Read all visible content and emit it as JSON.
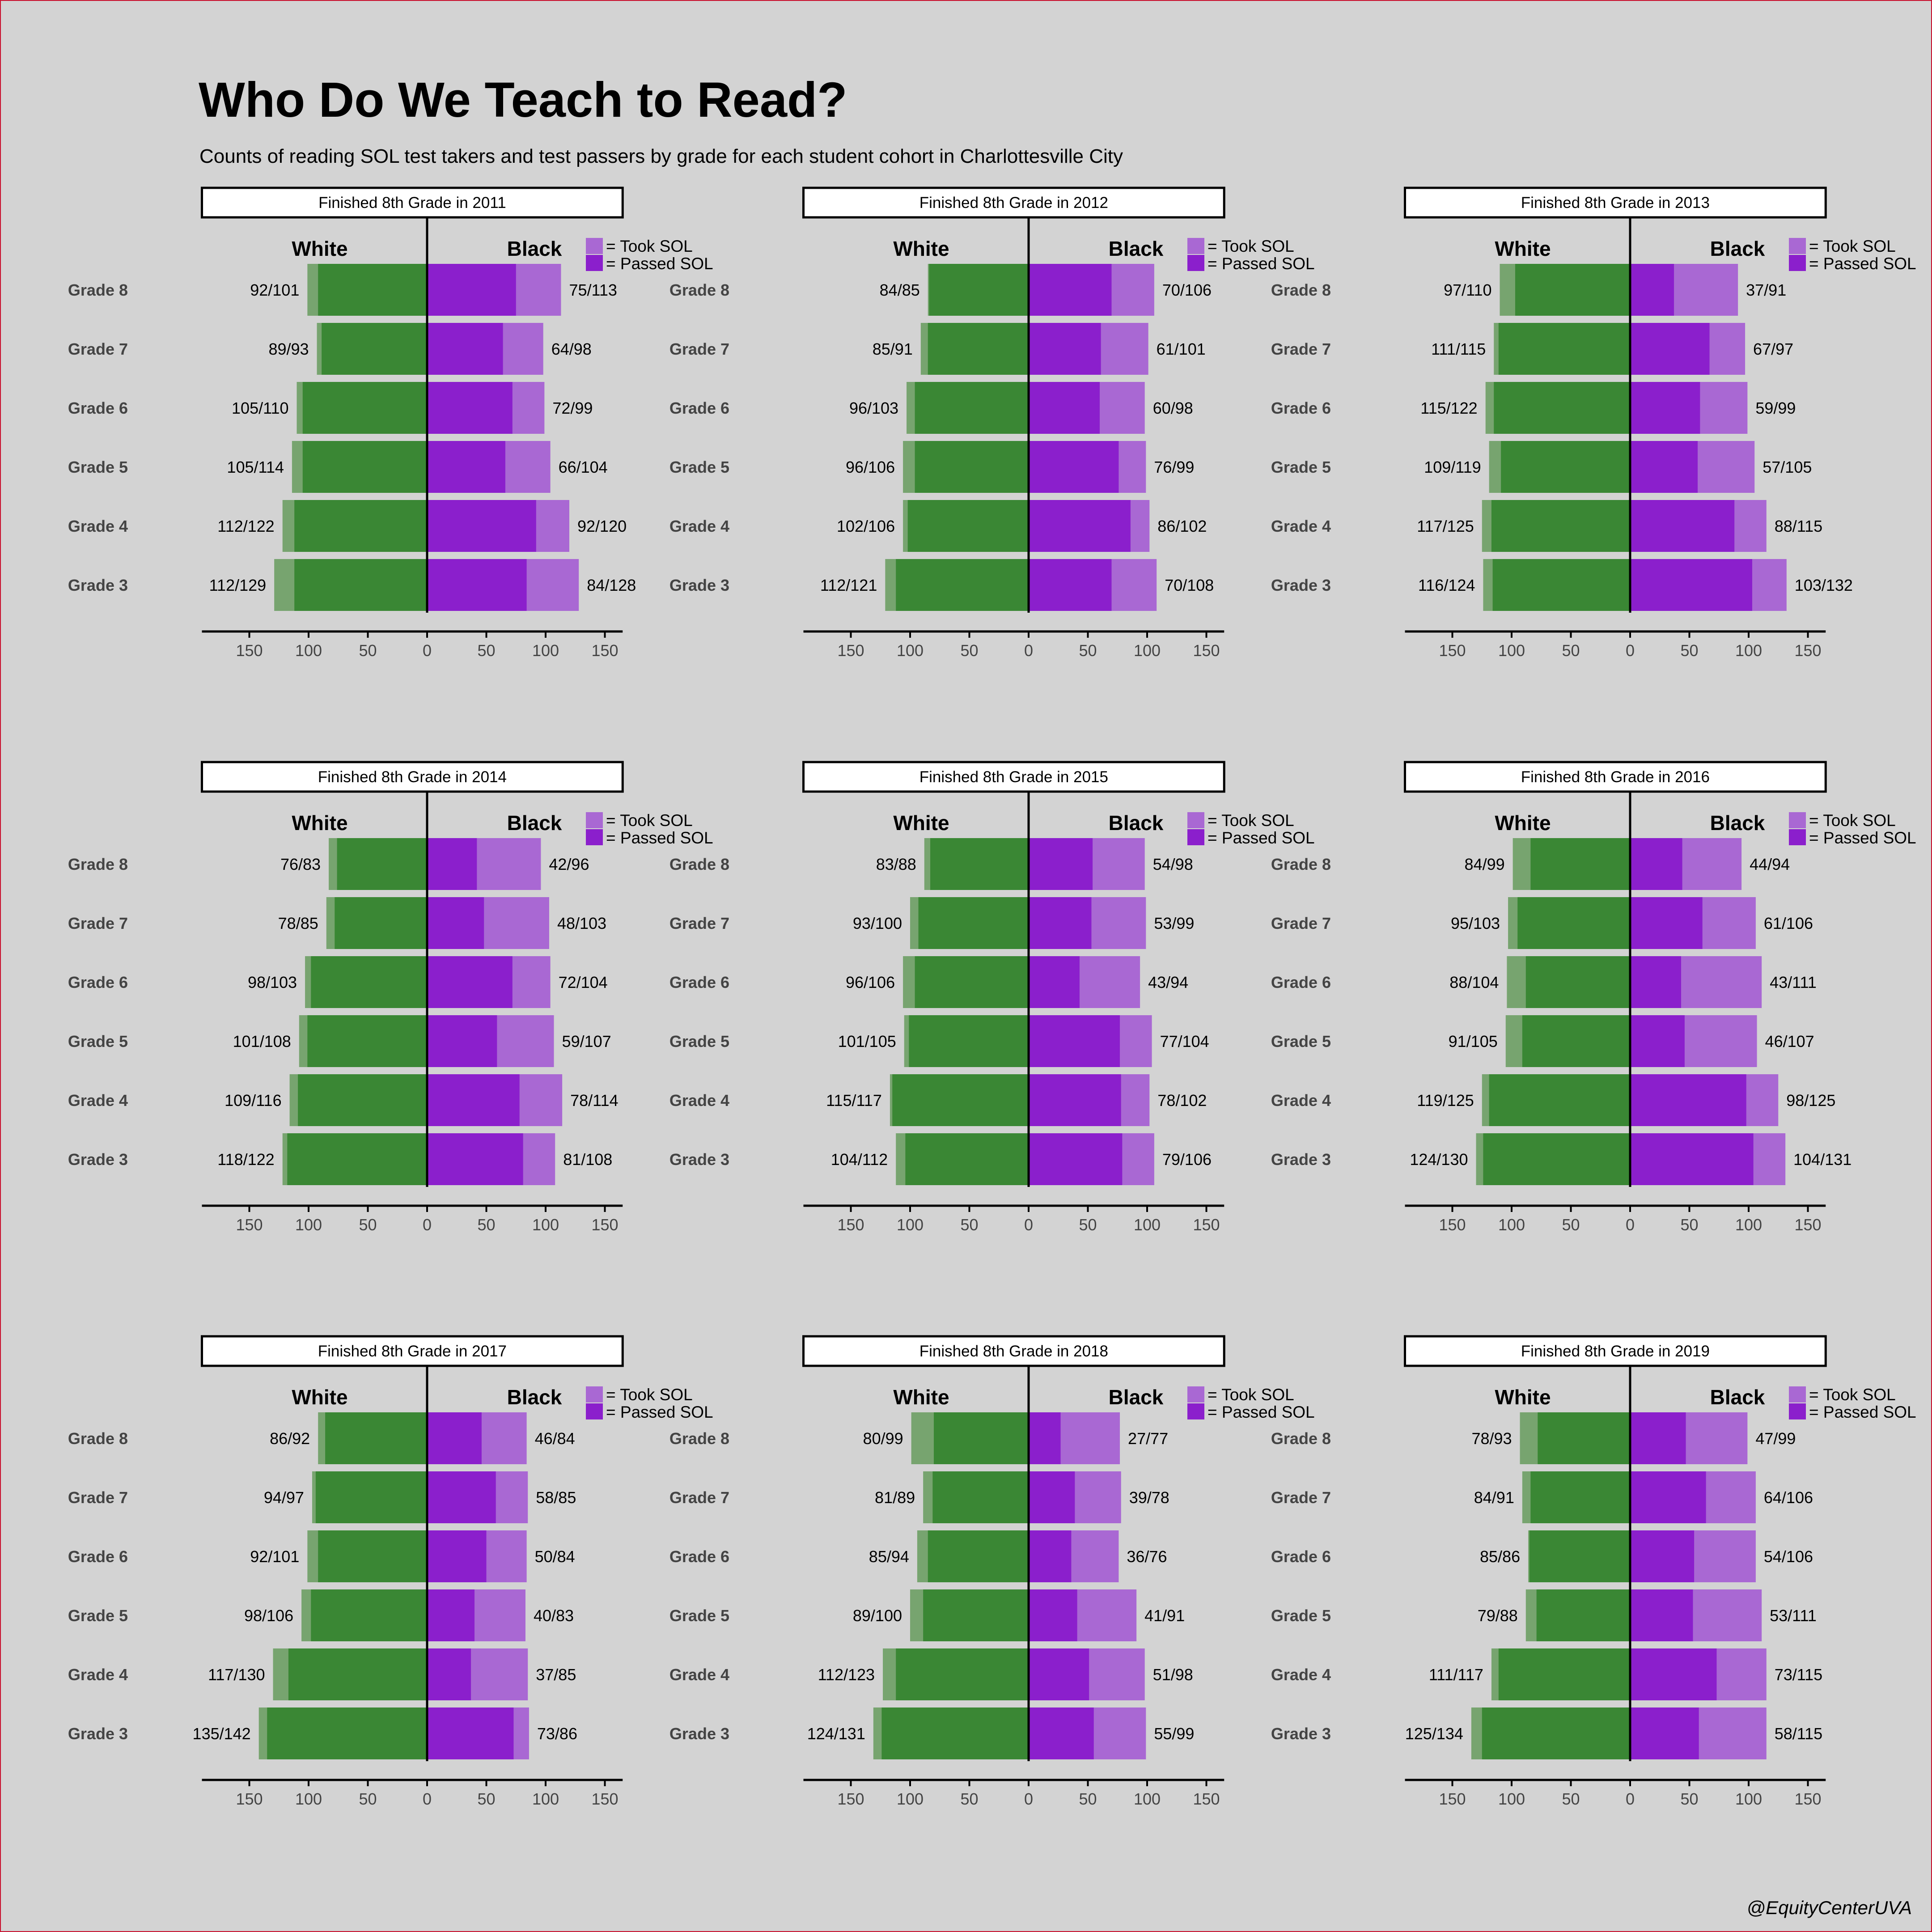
{
  "title": "Who Do We Teach to Read?",
  "subtitle": "Counts of reading SOL test takers and test passers by grade for each student cohort in Charlottesville City",
  "caption": "@EquityCenterUVA",
  "colors": {
    "background": "#d3d3d3",
    "white_took": "#77a46f",
    "white_passed": "#3a8734",
    "black_took": "#a968d3",
    "black_passed": "#8b1fcc"
  },
  "chart_data": [
    {
      "type": "bar",
      "title": "Finished 8th Grade in 2011",
      "group_labels": [
        "White",
        "Black"
      ],
      "legend": [
        "= Took SOL",
        "= Passed SOL"
      ],
      "legend_position": "top-right",
      "xlim": [
        -190,
        165
      ],
      "xticks": [
        -150,
        -100,
        -50,
        0,
        50,
        100,
        150
      ],
      "xtick_labels": [
        "150",
        "100",
        "50",
        "0",
        "50",
        "100",
        "150"
      ],
      "grid": false,
      "categories": [
        "Grade 8",
        "Grade 7",
        "Grade 6",
        "Grade 5",
        "Grade 4",
        "Grade 3"
      ],
      "series": [
        {
          "name": "White",
          "passed": [
            92,
            89,
            105,
            105,
            112,
            112
          ],
          "took": [
            101,
            93,
            110,
            114,
            122,
            129
          ],
          "labels": [
            "92/101",
            "89/93",
            "105/110",
            "105/114",
            "112/122",
            "112/129"
          ]
        },
        {
          "name": "Black",
          "passed": [
            75,
            64,
            72,
            66,
            92,
            84
          ],
          "took": [
            113,
            98,
            99,
            104,
            120,
            128
          ],
          "labels": [
            "75/113",
            "64/98",
            "72/99",
            "66/104",
            "92/120",
            "84/128"
          ]
        }
      ]
    },
    {
      "type": "bar",
      "title": "Finished 8th Grade in 2012",
      "group_labels": [
        "White",
        "Black"
      ],
      "legend": [
        "= Took SOL",
        "= Passed SOL"
      ],
      "legend_position": "top-right",
      "xlim": [
        -190,
        165
      ],
      "xticks": [
        -150,
        -100,
        -50,
        0,
        50,
        100,
        150
      ],
      "xtick_labels": [
        "150",
        "100",
        "50",
        "0",
        "50",
        "100",
        "150"
      ],
      "grid": false,
      "categories": [
        "Grade 8",
        "Grade 7",
        "Grade 6",
        "Grade 5",
        "Grade 4",
        "Grade 3"
      ],
      "series": [
        {
          "name": "White",
          "passed": [
            84,
            85,
            96,
            96,
            102,
            112
          ],
          "took": [
            85,
            91,
            103,
            106,
            106,
            121
          ],
          "labels": [
            "84/85",
            "85/91",
            "96/103",
            "96/106",
            "102/106",
            "112/121"
          ]
        },
        {
          "name": "Black",
          "passed": [
            70,
            61,
            60,
            76,
            86,
            70
          ],
          "took": [
            106,
            101,
            98,
            99,
            102,
            108
          ],
          "labels": [
            "70/106",
            "61/101",
            "60/98",
            "76/99",
            "86/102",
            "70/108"
          ]
        }
      ]
    },
    {
      "type": "bar",
      "title": "Finished 8th Grade in 2013",
      "group_labels": [
        "White",
        "Black"
      ],
      "legend": [
        "= Took SOL",
        "= Passed SOL"
      ],
      "legend_position": "top-right",
      "xlim": [
        -190,
        165
      ],
      "xticks": [
        -150,
        -100,
        -50,
        0,
        50,
        100,
        150
      ],
      "xtick_labels": [
        "150",
        "100",
        "50",
        "0",
        "50",
        "100",
        "150"
      ],
      "grid": false,
      "categories": [
        "Grade 8",
        "Grade 7",
        "Grade 6",
        "Grade 5",
        "Grade 4",
        "Grade 3"
      ],
      "series": [
        {
          "name": "White",
          "passed": [
            97,
            111,
            115,
            109,
            117,
            116
          ],
          "took": [
            110,
            115,
            122,
            119,
            125,
            124
          ],
          "labels": [
            "97/110",
            "111/115",
            "115/122",
            "109/119",
            "117/125",
            "116/124"
          ]
        },
        {
          "name": "Black",
          "passed": [
            37,
            67,
            59,
            57,
            88,
            103
          ],
          "took": [
            91,
            97,
            99,
            105,
            115,
            132
          ],
          "labels": [
            "37/91",
            "67/97",
            "59/99",
            "57/105",
            "88/115",
            "103/132"
          ]
        }
      ]
    },
    {
      "type": "bar",
      "title": "Finished 8th Grade in 2014",
      "group_labels": [
        "White",
        "Black"
      ],
      "legend": [
        "= Took SOL",
        "= Passed SOL"
      ],
      "legend_position": "top-right",
      "xlim": [
        -190,
        165
      ],
      "xticks": [
        -150,
        -100,
        -50,
        0,
        50,
        100,
        150
      ],
      "xtick_labels": [
        "150",
        "100",
        "50",
        "0",
        "50",
        "100",
        "150"
      ],
      "grid": false,
      "categories": [
        "Grade 8",
        "Grade 7",
        "Grade 6",
        "Grade 5",
        "Grade 4",
        "Grade 3"
      ],
      "series": [
        {
          "name": "White",
          "passed": [
            76,
            78,
            98,
            101,
            109,
            118
          ],
          "took": [
            83,
            85,
            103,
            108,
            116,
            122
          ],
          "labels": [
            "76/83",
            "78/85",
            "98/103",
            "101/108",
            "109/116",
            "118/122"
          ]
        },
        {
          "name": "Black",
          "passed": [
            42,
            48,
            72,
            59,
            78,
            81
          ],
          "took": [
            96,
            103,
            104,
            107,
            114,
            108
          ],
          "labels": [
            "42/96",
            "48/103",
            "72/104",
            "59/107",
            "78/114",
            "81/108"
          ]
        }
      ]
    },
    {
      "type": "bar",
      "title": "Finished 8th Grade in 2015",
      "group_labels": [
        "White",
        "Black"
      ],
      "legend": [
        "= Took SOL",
        "= Passed SOL"
      ],
      "legend_position": "top-right",
      "xlim": [
        -190,
        165
      ],
      "xticks": [
        -150,
        -100,
        -50,
        0,
        50,
        100,
        150
      ],
      "xtick_labels": [
        "150",
        "100",
        "50",
        "0",
        "50",
        "100",
        "150"
      ],
      "grid": false,
      "categories": [
        "Grade 8",
        "Grade 7",
        "Grade 6",
        "Grade 5",
        "Grade 4",
        "Grade 3"
      ],
      "series": [
        {
          "name": "White",
          "passed": [
            83,
            93,
            96,
            101,
            115,
            104
          ],
          "took": [
            88,
            100,
            106,
            105,
            117,
            112
          ],
          "labels": [
            "83/88",
            "93/100",
            "96/106",
            "101/105",
            "115/117",
            "104/112"
          ]
        },
        {
          "name": "Black",
          "passed": [
            54,
            53,
            43,
            77,
            78,
            79
          ],
          "took": [
            98,
            99,
            94,
            104,
            102,
            106
          ],
          "labels": [
            "54/98",
            "53/99",
            "43/94",
            "77/104",
            "78/102",
            "79/106"
          ]
        }
      ]
    },
    {
      "type": "bar",
      "title": "Finished 8th Grade in 2016",
      "group_labels": [
        "White",
        "Black"
      ],
      "legend": [
        "= Took SOL",
        "= Passed SOL"
      ],
      "legend_position": "top-right",
      "xlim": [
        -190,
        165
      ],
      "xticks": [
        -150,
        -100,
        -50,
        0,
        50,
        100,
        150
      ],
      "xtick_labels": [
        "150",
        "100",
        "50",
        "0",
        "50",
        "100",
        "150"
      ],
      "grid": false,
      "categories": [
        "Grade 8",
        "Grade 7",
        "Grade 6",
        "Grade 5",
        "Grade 4",
        "Grade 3"
      ],
      "series": [
        {
          "name": "White",
          "passed": [
            84,
            95,
            88,
            91,
            119,
            124
          ],
          "took": [
            99,
            103,
            104,
            105,
            125,
            130
          ],
          "labels": [
            "84/99",
            "95/103",
            "88/104",
            "91/105",
            "119/125",
            "124/130"
          ]
        },
        {
          "name": "Black",
          "passed": [
            44,
            61,
            43,
            46,
            98,
            104
          ],
          "took": [
            94,
            106,
            111,
            107,
            125,
            131
          ],
          "labels": [
            "44/94",
            "61/106",
            "43/111",
            "46/107",
            "98/125",
            "104/131"
          ]
        }
      ]
    },
    {
      "type": "bar",
      "title": "Finished 8th Grade in 2017",
      "group_labels": [
        "White",
        "Black"
      ],
      "legend": [
        "= Took SOL",
        "= Passed SOL"
      ],
      "legend_position": "top-right",
      "xlim": [
        -190,
        165
      ],
      "xticks": [
        -150,
        -100,
        -50,
        0,
        50,
        100,
        150
      ],
      "xtick_labels": [
        "150",
        "100",
        "50",
        "0",
        "50",
        "100",
        "150"
      ],
      "grid": false,
      "categories": [
        "Grade 8",
        "Grade 7",
        "Grade 6",
        "Grade 5",
        "Grade 4",
        "Grade 3"
      ],
      "series": [
        {
          "name": "White",
          "passed": [
            86,
            94,
            92,
            98,
            117,
            135
          ],
          "took": [
            92,
            97,
            101,
            106,
            130,
            142
          ],
          "labels": [
            "86/92",
            "94/97",
            "92/101",
            "98/106",
            "117/130",
            "135/142"
          ]
        },
        {
          "name": "Black",
          "passed": [
            46,
            58,
            50,
            40,
            37,
            73
          ],
          "took": [
            84,
            85,
            84,
            83,
            85,
            86
          ],
          "labels": [
            "46/84",
            "58/85",
            "50/84",
            "40/83",
            "37/85",
            "73/86"
          ]
        }
      ]
    },
    {
      "type": "bar",
      "title": "Finished 8th Grade in 2018",
      "group_labels": [
        "White",
        "Black"
      ],
      "legend": [
        "= Took SOL",
        "= Passed SOL"
      ],
      "legend_position": "top-right",
      "xlim": [
        -190,
        165
      ],
      "xticks": [
        -150,
        -100,
        -50,
        0,
        50,
        100,
        150
      ],
      "xtick_labels": [
        "150",
        "100",
        "50",
        "0",
        "50",
        "100",
        "150"
      ],
      "grid": false,
      "categories": [
        "Grade 8",
        "Grade 7",
        "Grade 6",
        "Grade 5",
        "Grade 4",
        "Grade 3"
      ],
      "series": [
        {
          "name": "White",
          "passed": [
            80,
            81,
            85,
            89,
            112,
            124
          ],
          "took": [
            99,
            89,
            94,
            100,
            123,
            131
          ],
          "labels": [
            "80/99",
            "81/89",
            "85/94",
            "89/100",
            "112/123",
            "124/131"
          ]
        },
        {
          "name": "Black",
          "passed": [
            27,
            39,
            36,
            41,
            51,
            55
          ],
          "took": [
            77,
            78,
            76,
            91,
            98,
            99
          ],
          "labels": [
            "27/77",
            "39/78",
            "36/76",
            "41/91",
            "51/98",
            "55/99"
          ]
        }
      ]
    },
    {
      "type": "bar",
      "title": "Finished 8th Grade in 2019",
      "group_labels": [
        "White",
        "Black"
      ],
      "legend": [
        "= Took SOL",
        "= Passed SOL"
      ],
      "legend_position": "top-right",
      "xlim": [
        -190,
        165
      ],
      "xticks": [
        -150,
        -100,
        -50,
        0,
        50,
        100,
        150
      ],
      "xtick_labels": [
        "150",
        "100",
        "50",
        "0",
        "50",
        "100",
        "150"
      ],
      "grid": false,
      "categories": [
        "Grade 8",
        "Grade 7",
        "Grade 6",
        "Grade 5",
        "Grade 4",
        "Grade 3"
      ],
      "series": [
        {
          "name": "White",
          "passed": [
            78,
            84,
            85,
            79,
            111,
            125
          ],
          "took": [
            93,
            91,
            86,
            88,
            117,
            134
          ],
          "labels": [
            "78/93",
            "84/91",
            "85/86",
            "79/88",
            "111/117",
            "125/134"
          ]
        },
        {
          "name": "Black",
          "passed": [
            47,
            64,
            54,
            53,
            73,
            58
          ],
          "took": [
            99,
            106,
            106,
            111,
            115,
            115
          ],
          "labels": [
            "47/99",
            "64/106",
            "54/106",
            "53/111",
            "73/115",
            "58/115"
          ]
        }
      ]
    }
  ]
}
